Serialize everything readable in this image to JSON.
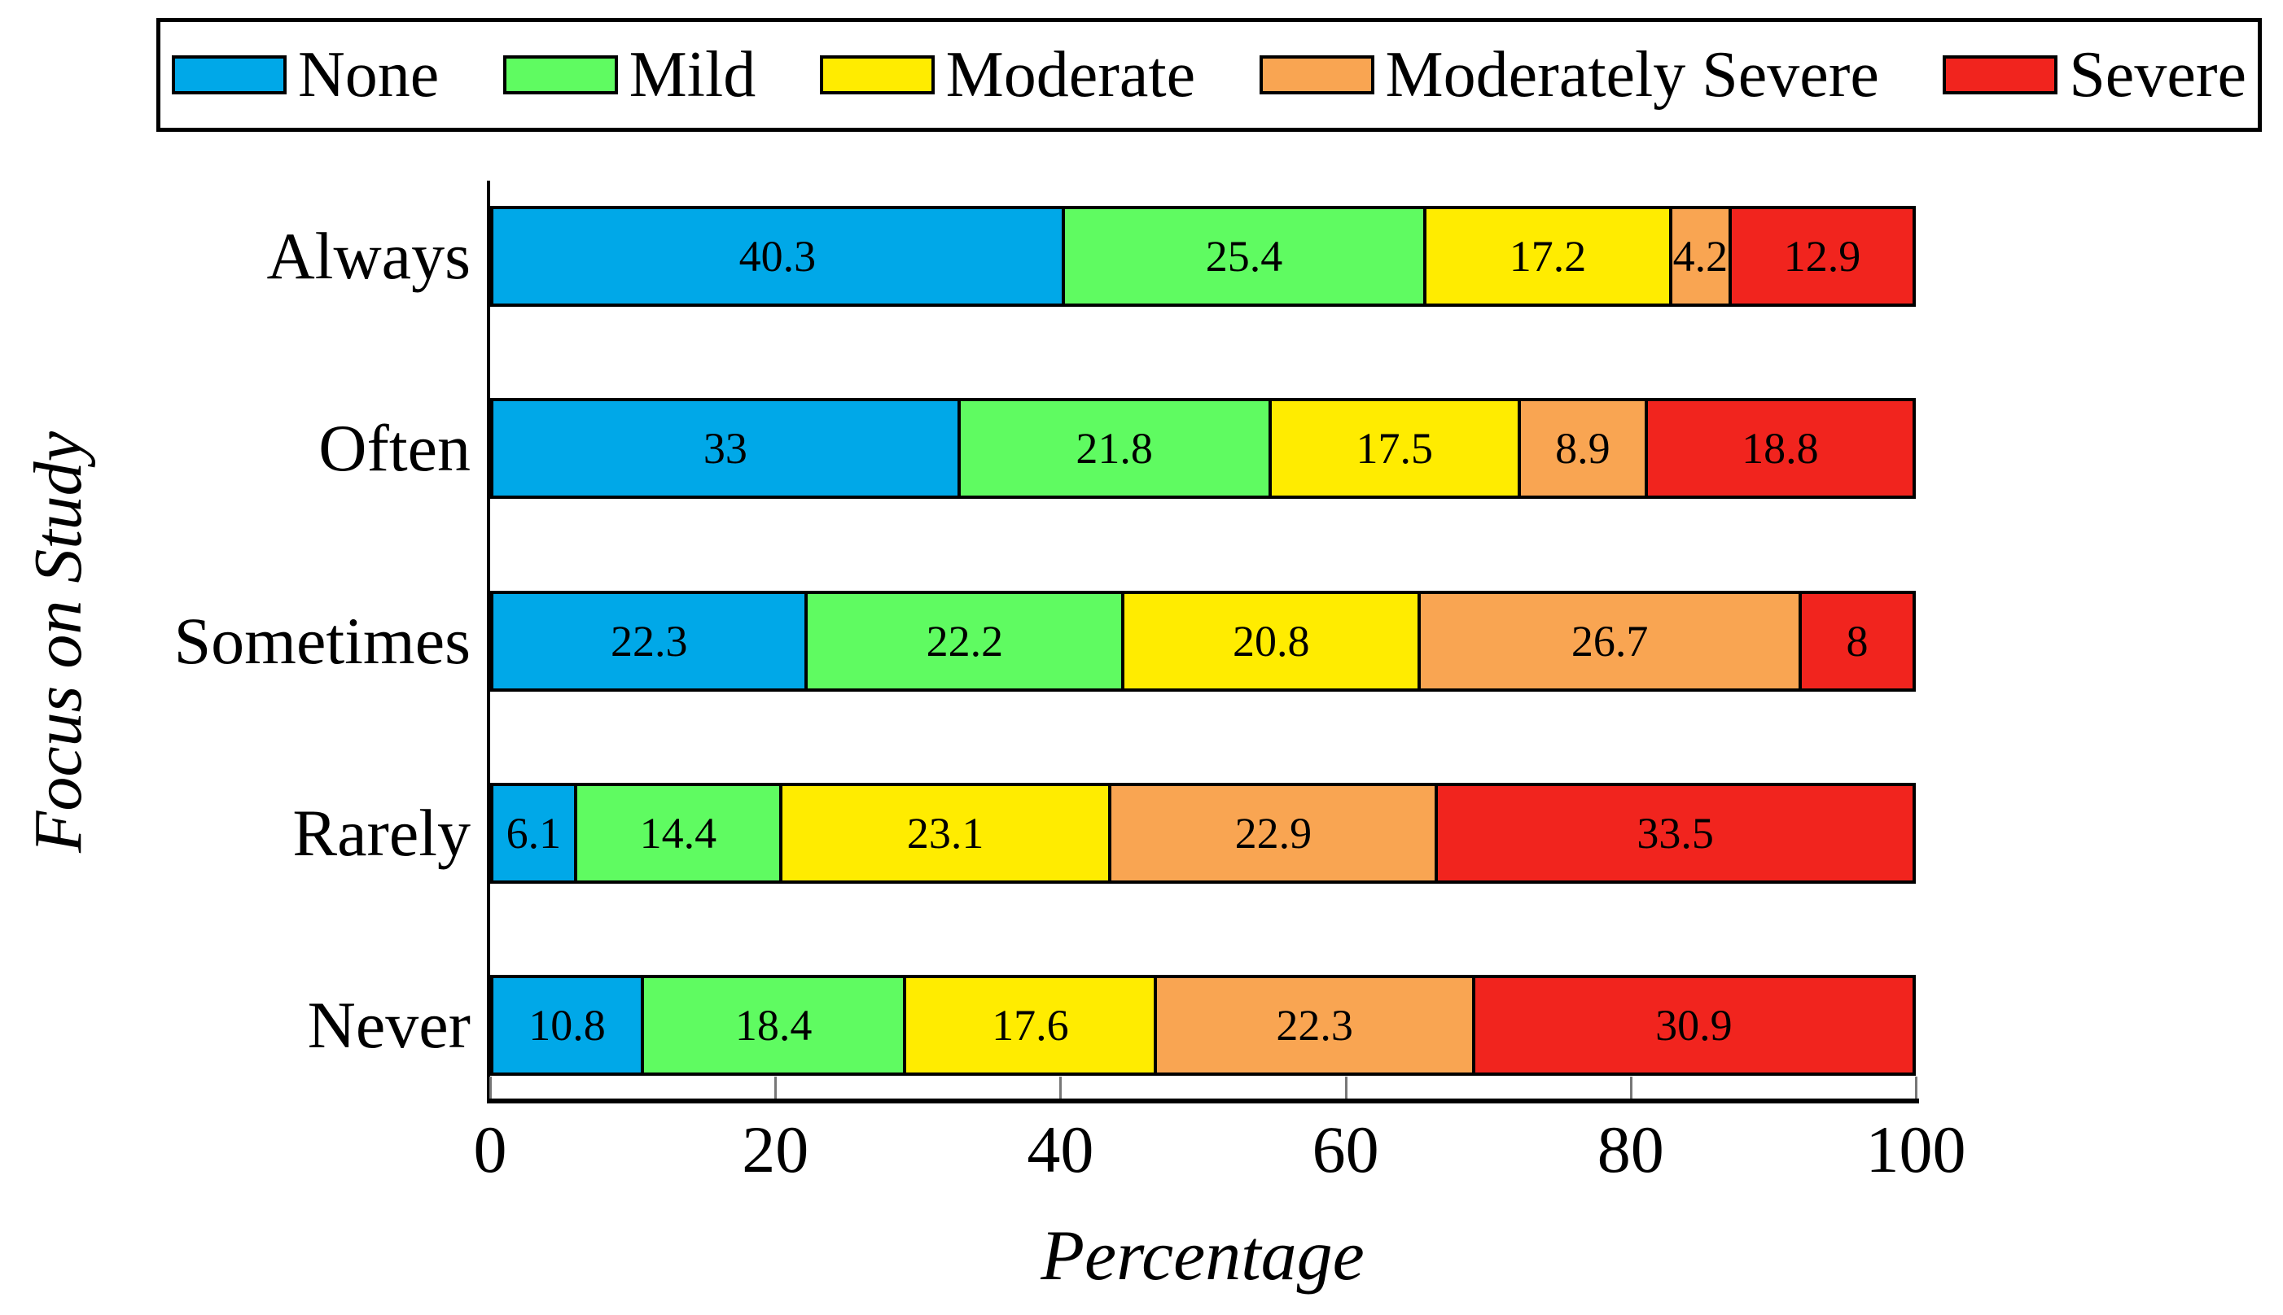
{
  "chart_data": {
    "type": "bar",
    "subtype": "horizontal-stacked",
    "title": "",
    "xlabel": "Percentage",
    "ylabel": "Focus on Study",
    "categories": [
      "Always",
      "Often",
      "Sometimes",
      "Rarely",
      "Never"
    ],
    "series": [
      {
        "name": "None",
        "color": "#00A8E8",
        "values": [
          40.3,
          33,
          22.3,
          6.1,
          10.8
        ]
      },
      {
        "name": "Mild",
        "color": "#5FFB61",
        "values": [
          25.4,
          21.8,
          22.2,
          14.4,
          18.4
        ]
      },
      {
        "name": "Moderate",
        "color": "#FFEC00",
        "values": [
          17.2,
          17.5,
          20.8,
          23.1,
          17.6
        ]
      },
      {
        "name": "Moderately Severe",
        "color": "#F9A552",
        "values": [
          4.2,
          8.9,
          26.7,
          22.9,
          22.3
        ]
      },
      {
        "name": "Severe",
        "color": "#F1241E",
        "values": [
          12.9,
          18.8,
          8,
          33.5,
          30.9
        ]
      }
    ],
    "x_ticks": [
      0,
      20,
      40,
      60,
      80,
      100
    ],
    "xlim": [
      0,
      100
    ],
    "grid": false,
    "legend_position": "top",
    "value_labels": true,
    "axis_color": "#000000",
    "tick_color": "#777777",
    "background_color": "#ffffff"
  }
}
